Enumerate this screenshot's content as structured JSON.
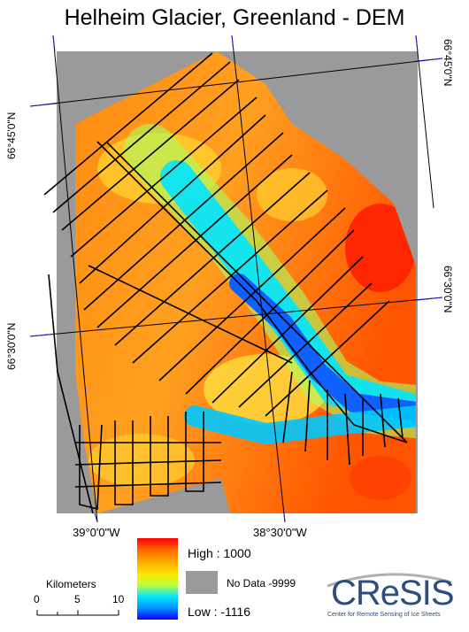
{
  "title": "Helheim Glacier, Greenland - DEM",
  "grid_labels": {
    "lat_left_top": "66°45'0\"N",
    "lat_right_top": "66°45'0\"N",
    "lat_left_mid": "66°30'0\"N",
    "lat_right_mid": "66°30'0\"N",
    "lon_left": "39°0'0\"W",
    "lon_right": "38°30'0\"W"
  },
  "legend": {
    "high": "High : 1000",
    "nodata": "No Data -9999",
    "low": "Low : -1116",
    "colors": {
      "high": "#ff0000",
      "mid": "#ffe800",
      "low": "#1000ff",
      "nodata": "#9a9a9a"
    }
  },
  "scalebar": {
    "title": "Kilometers",
    "ticks": [
      "0",
      "5",
      "10"
    ]
  },
  "logo": {
    "text": "CReSIS",
    "subtitle": "Center for Remote Sensing of Ice Sheets"
  }
}
